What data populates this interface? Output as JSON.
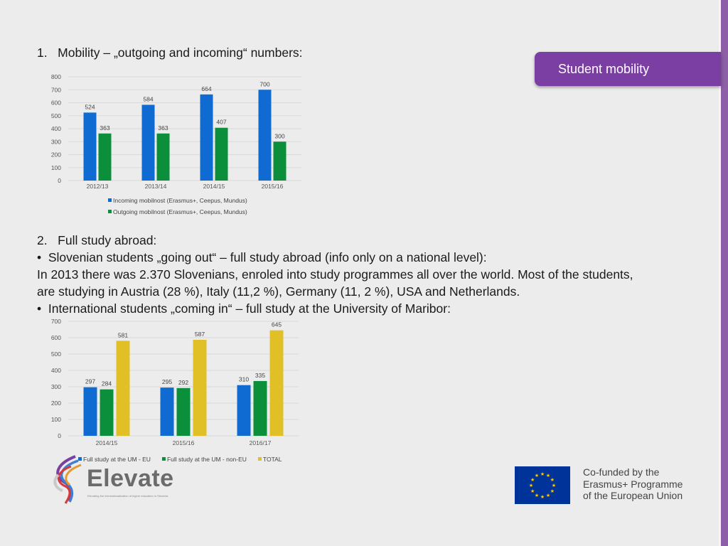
{
  "slide": {
    "tab_label": "Student mobility",
    "section1_heading": "1.   Mobility – „outgoing and incoming“ numbers:",
    "section2_heading": "2.   Full study abroad:",
    "bullet1": "•  Slovenian students „going out“ – full study abroad (info only on a national level):",
    "para_line1": "In 2013 there was 2.370 Slovenians, enroled into study programmes all over the world. Most of the students,",
    "para_line2": "are studying in Austria (28 %), Italy (11,2 %), Germany (11, 2 %), USA and Netherlands.",
    "bullet2": "•  International students „coming in“ – full study at the University of Maribor:",
    "logo_name": "Elevate",
    "logo_tagline": "Elevating the internationalization of higher education in Slovenia",
    "eu_line1": "Co-funded by the",
    "eu_line2": "Erasmus+ Programme",
    "eu_line3": "of the European Union"
  },
  "colors": {
    "accent_purple": "#7b3fa3",
    "blue": "#0f6bd1",
    "green": "#0b8f3a",
    "yellow": "#e0c026"
  },
  "chart_data": [
    {
      "type": "bar",
      "title": "",
      "categories": [
        "2012/13",
        "2013/14",
        "2014/15",
        "2015/16"
      ],
      "series": [
        {
          "name": "Incoming mobilnost (Erasmus+, Ceepus, Mundus)",
          "values": [
            524,
            584,
            664,
            700
          ],
          "color": "#0f6bd1"
        },
        {
          "name": "Outgoing mobilnost  (Erasmus+, Ceepus, Mundus)",
          "values": [
            363,
            363,
            407,
            300
          ],
          "color": "#0b8f3a"
        }
      ],
      "ylim": [
        0,
        800
      ],
      "yticks": [
        0,
        100,
        200,
        300,
        400,
        500,
        600,
        700,
        800
      ],
      "grid": true,
      "legend": "bottom"
    },
    {
      "type": "bar",
      "title": "",
      "categories": [
        "2014/15",
        "2015/16",
        "2016/17"
      ],
      "series": [
        {
          "name": "Full study at the UM - EU",
          "values": [
            297,
            295,
            310
          ],
          "color": "#0f6bd1"
        },
        {
          "name": "Full study at the UM - non-EU",
          "values": [
            284,
            292,
            335
          ],
          "color": "#0b8f3a"
        },
        {
          "name": "TOTAL",
          "values": [
            581,
            587,
            645
          ],
          "color": "#e0c026"
        }
      ],
      "ylim": [
        0,
        700
      ],
      "yticks": [
        0,
        100,
        200,
        300,
        400,
        500,
        600,
        700
      ],
      "grid": true,
      "legend": "bottom"
    }
  ]
}
